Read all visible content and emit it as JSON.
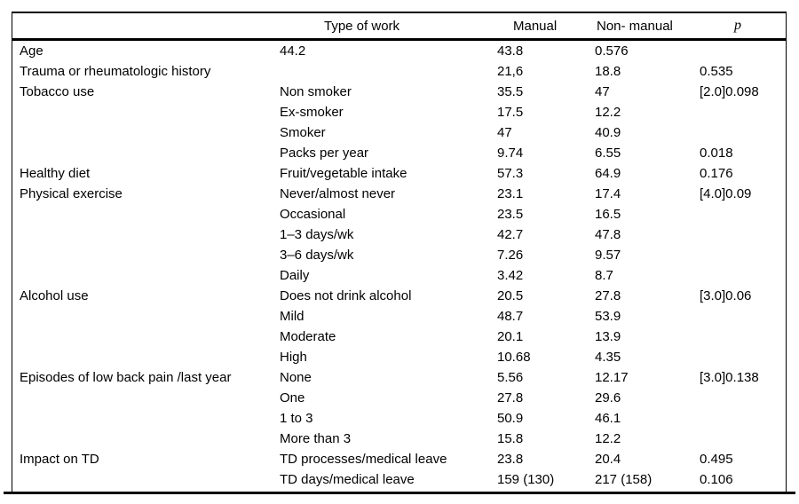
{
  "colors": {
    "background": "#ffffff",
    "text": "#000000",
    "rule": "#000000"
  },
  "table": {
    "columns": [
      {
        "label": ""
      },
      {
        "label": "Type of work"
      },
      {
        "label": "Manual"
      },
      {
        "label": "Non- manual"
      },
      {
        "label": "p"
      }
    ],
    "rows": [
      {
        "category": "Age",
        "type": "44.2",
        "manual": "43.8",
        "non_manual": "0.576",
        "p": ""
      },
      {
        "category": "Trauma or rheumatologic history",
        "type": "",
        "manual": "21,6",
        "non_manual": "18.8",
        "p": "0.535"
      },
      {
        "category": "Tobacco use",
        "type": "Non smoker",
        "manual": "35.5",
        "non_manual": "47",
        "p": "[2.0]0.098"
      },
      {
        "category": "",
        "type": "Ex-smoker",
        "manual": "17.5",
        "non_manual": "12.2",
        "p": ""
      },
      {
        "category": "",
        "type": "Smoker",
        "manual": "47",
        "non_manual": "40.9",
        "p": ""
      },
      {
        "category": "",
        "type": "Packs per year",
        "manual": "9.74",
        "non_manual": "6.55",
        "p": "0.018"
      },
      {
        "category": "Healthy diet",
        "type": "Fruit/vegetable intake",
        "manual": "57.3",
        "non_manual": "64.9",
        "p": "0.176"
      },
      {
        "category": "Physical exercise",
        "type": "Never/almost never",
        "manual": "23.1",
        "non_manual": "17.4",
        "p": "[4.0]0.09"
      },
      {
        "category": "",
        "type": "Occasional",
        "manual": "23.5",
        "non_manual": "16.5",
        "p": ""
      },
      {
        "category": "",
        "type": "1–3 days/wk",
        "manual": "42.7",
        "non_manual": "47.8",
        "p": ""
      },
      {
        "category": "",
        "type": "3–6 days/wk",
        "manual": "7.26",
        "non_manual": "9.57",
        "p": ""
      },
      {
        "category": "",
        "type": "Daily",
        "manual": "3.42",
        "non_manual": "8.7",
        "p": ""
      },
      {
        "category": "Alcohol use",
        "type": "Does not drink alcohol",
        "manual": "20.5",
        "non_manual": "27.8",
        "p": "[3.0]0.06"
      },
      {
        "category": "",
        "type": "Mild",
        "manual": "48.7",
        "non_manual": "53.9",
        "p": ""
      },
      {
        "category": "",
        "type": "Moderate",
        "manual": "20.1",
        "non_manual": "13.9",
        "p": ""
      },
      {
        "category": "",
        "type": "High",
        "manual": "10.68",
        "non_manual": "4.35",
        "p": ""
      },
      {
        "category": "Episodes of low back pain /last year",
        "type": "None",
        "manual": "5.56",
        "non_manual": "12.17",
        "p": "[3.0]0.138"
      },
      {
        "category": "",
        "type": "One",
        "manual": "27.8",
        "non_manual": "29.6",
        "p": ""
      },
      {
        "category": "",
        "type": "1 to 3",
        "manual": "50.9",
        "non_manual": "46.1",
        "p": ""
      },
      {
        "category": "",
        "type": "More than 3",
        "manual": "15.8",
        "non_manual": "12.2",
        "p": ""
      },
      {
        "category": "Impact on TD",
        "type": "TD processes/medical leave",
        "manual": "23.8",
        "non_manual": "20.4",
        "p": "0.495"
      },
      {
        "category": "",
        "type": "TD days/medical leave",
        "manual": "159 (130)",
        "non_manual": "217 (158)",
        "p": "0.106"
      }
    ]
  }
}
